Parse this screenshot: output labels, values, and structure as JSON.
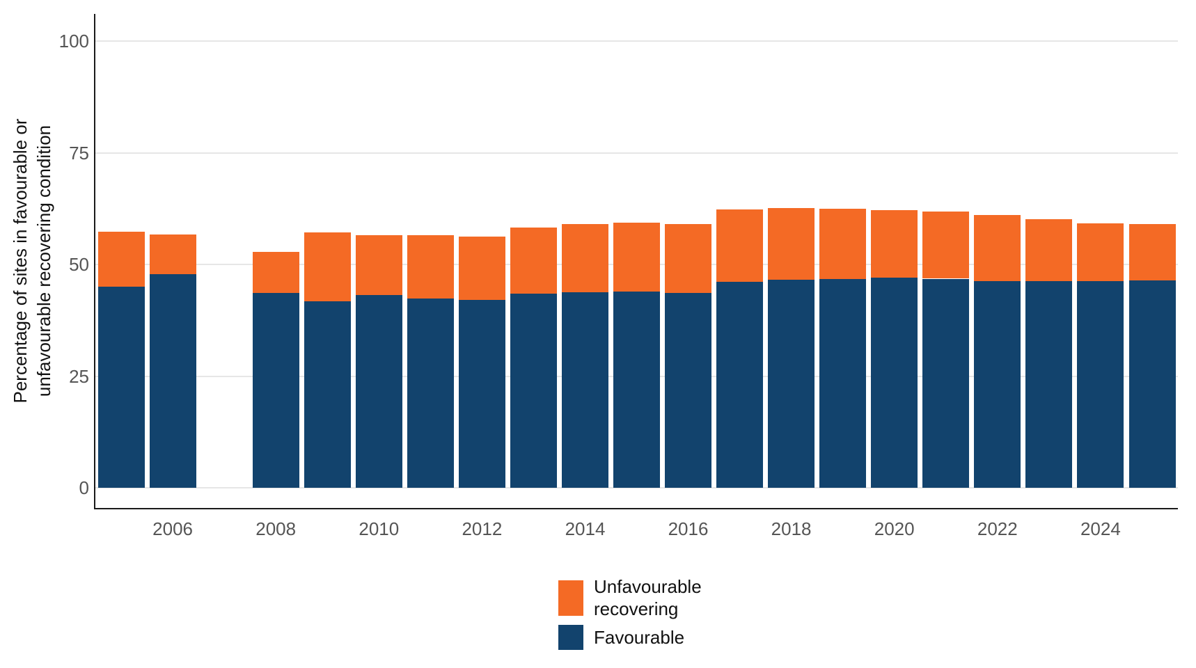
{
  "colors": {
    "favourable": "#12436D",
    "unfavourable_recovering": "#F46A25",
    "gridline": "#E6E6E6",
    "axis_line": "#1A1A1A",
    "tick_label": "#555555",
    "background": "#FFFFFF"
  },
  "y_axis": {
    "title_line1": "Percentage of sites in favourable or",
    "title_line2": "unfavourable recovering condition",
    "tick_labels": [
      "0",
      "25",
      "50",
      "75",
      "100"
    ]
  },
  "x_axis": {
    "tick_labels": [
      "2006",
      "2008",
      "2010",
      "2012",
      "2014",
      "2016",
      "2018",
      "2020",
      "2022",
      "2024"
    ]
  },
  "legend": {
    "items": [
      {
        "id": "unfavourable-recovering",
        "color": "#F46A25",
        "lines": [
          "Unfavourable",
          "recovering"
        ]
      },
      {
        "id": "favourable",
        "color": "#12436D",
        "lines": [
          "Favourable"
        ]
      }
    ]
  },
  "chart_data": {
    "type": "bar",
    "stacked": true,
    "title": "",
    "xlabel": "",
    "ylabel": "Percentage of sites in favourable or unfavourable recovering condition",
    "ylim": [
      0,
      100
    ],
    "yticks": [
      0,
      25,
      50,
      75,
      100
    ],
    "xticks": [
      2006,
      2008,
      2010,
      2012,
      2014,
      2016,
      2018,
      2020,
      2022,
      2024
    ],
    "grid": true,
    "legend_position": "bottom",
    "categories": [
      2005,
      2006,
      2007,
      2008,
      2009,
      2010,
      2011,
      2012,
      2013,
      2014,
      2015,
      2016,
      2017,
      2018,
      2019,
      2020,
      2021,
      2022,
      2023,
      2024,
      2025
    ],
    "series": [
      {
        "name": "Favourable",
        "color": "#12436D",
        "values": [
          45.1,
          47.8,
          null,
          43.6,
          41.8,
          43.1,
          42.3,
          42.1,
          43.5,
          43.8,
          43.9,
          43.6,
          46.1,
          46.6,
          46.8,
          47.0,
          46.8,
          46.2,
          46.2,
          46.2,
          46.4
        ]
      },
      {
        "name": "Unfavourable recovering",
        "color": "#F46A25",
        "values": [
          12.3,
          8.9,
          null,
          9.2,
          15.3,
          13.5,
          14.2,
          14.1,
          14.7,
          15.2,
          15.4,
          15.4,
          16.2,
          16.0,
          15.7,
          15.2,
          15.0,
          14.9,
          13.9,
          13.0,
          12.6
        ]
      }
    ],
    "totals": [
      57.4,
      56.7,
      null,
      52.8,
      57.1,
      56.6,
      56.5,
      56.2,
      58.2,
      59.0,
      59.3,
      59.0,
      62.3,
      62.6,
      62.5,
      62.2,
      61.8,
      61.1,
      60.1,
      59.2,
      59.0
    ],
    "missing_years": [
      2007
    ]
  }
}
